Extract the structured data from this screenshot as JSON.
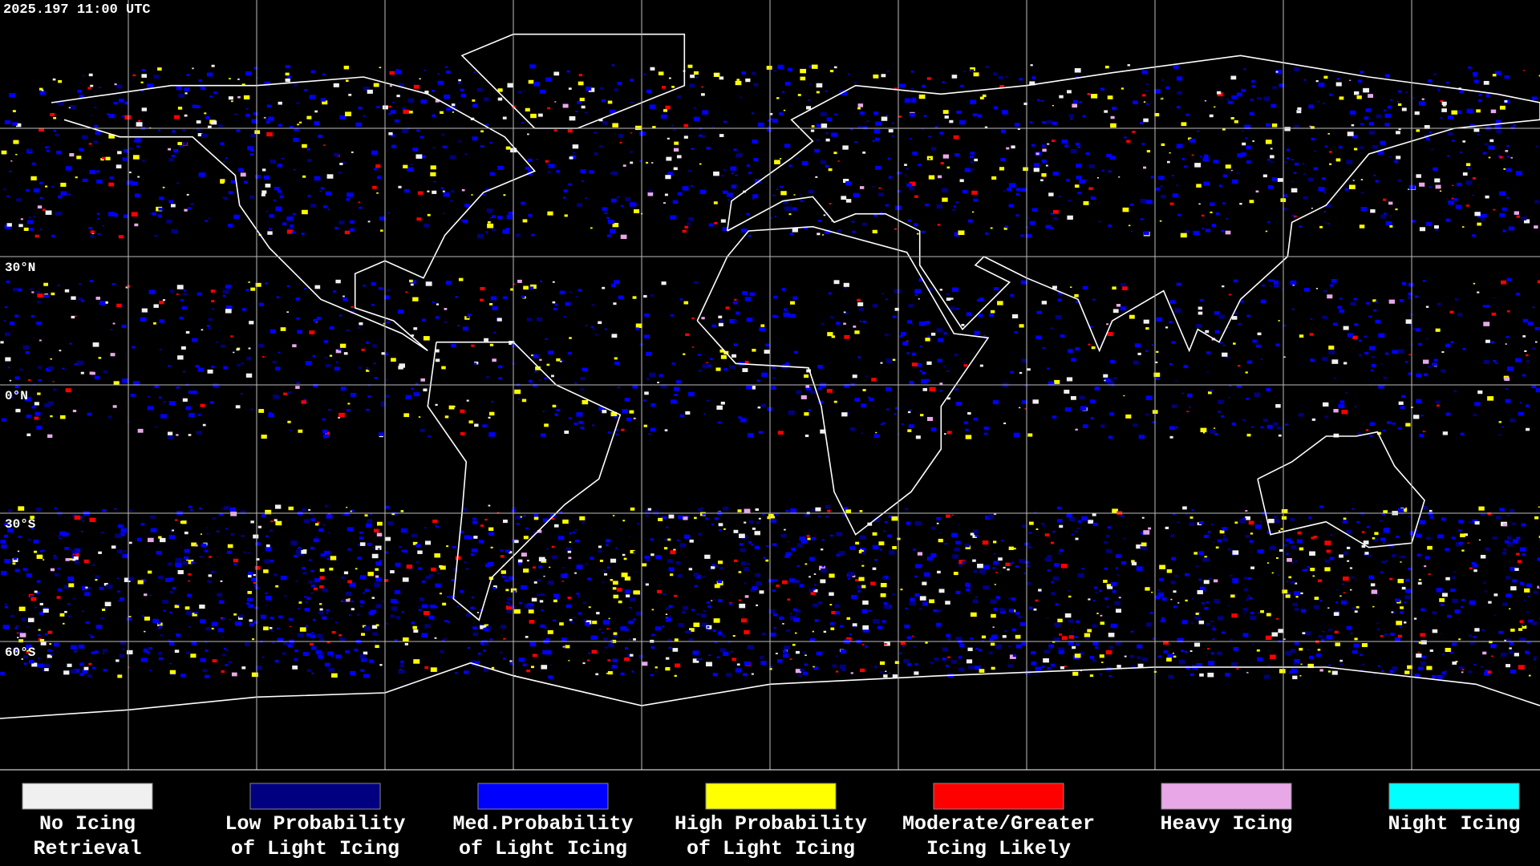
{
  "header": {
    "timestamp": "2025.197 11:00 UTC"
  },
  "latitude_labels": [
    "30°N",
    "0°N",
    "30°S",
    "60°S"
  ],
  "legend": [
    {
      "label": [
        "No Icing",
        "Retrieval"
      ],
      "color": "#f0f0f0"
    },
    {
      "label": [
        "Low Probability",
        "of Light Icing"
      ],
      "color": "#000080"
    },
    {
      "label": [
        "Med.Probability",
        "of Light Icing"
      ],
      "color": "#0000ff"
    },
    {
      "label": [
        "High Probability",
        "of Light Icing"
      ],
      "color": "#ffff00"
    },
    {
      "label": [
        "Moderate/Greater",
        "Icing Likely"
      ],
      "color": "#ff0000"
    },
    {
      "label": [
        "Heavy Icing"
      ],
      "color": "#e8a8e8"
    },
    {
      "label": [
        "Night Icing"
      ],
      "color": "#00ffff"
    }
  ]
}
